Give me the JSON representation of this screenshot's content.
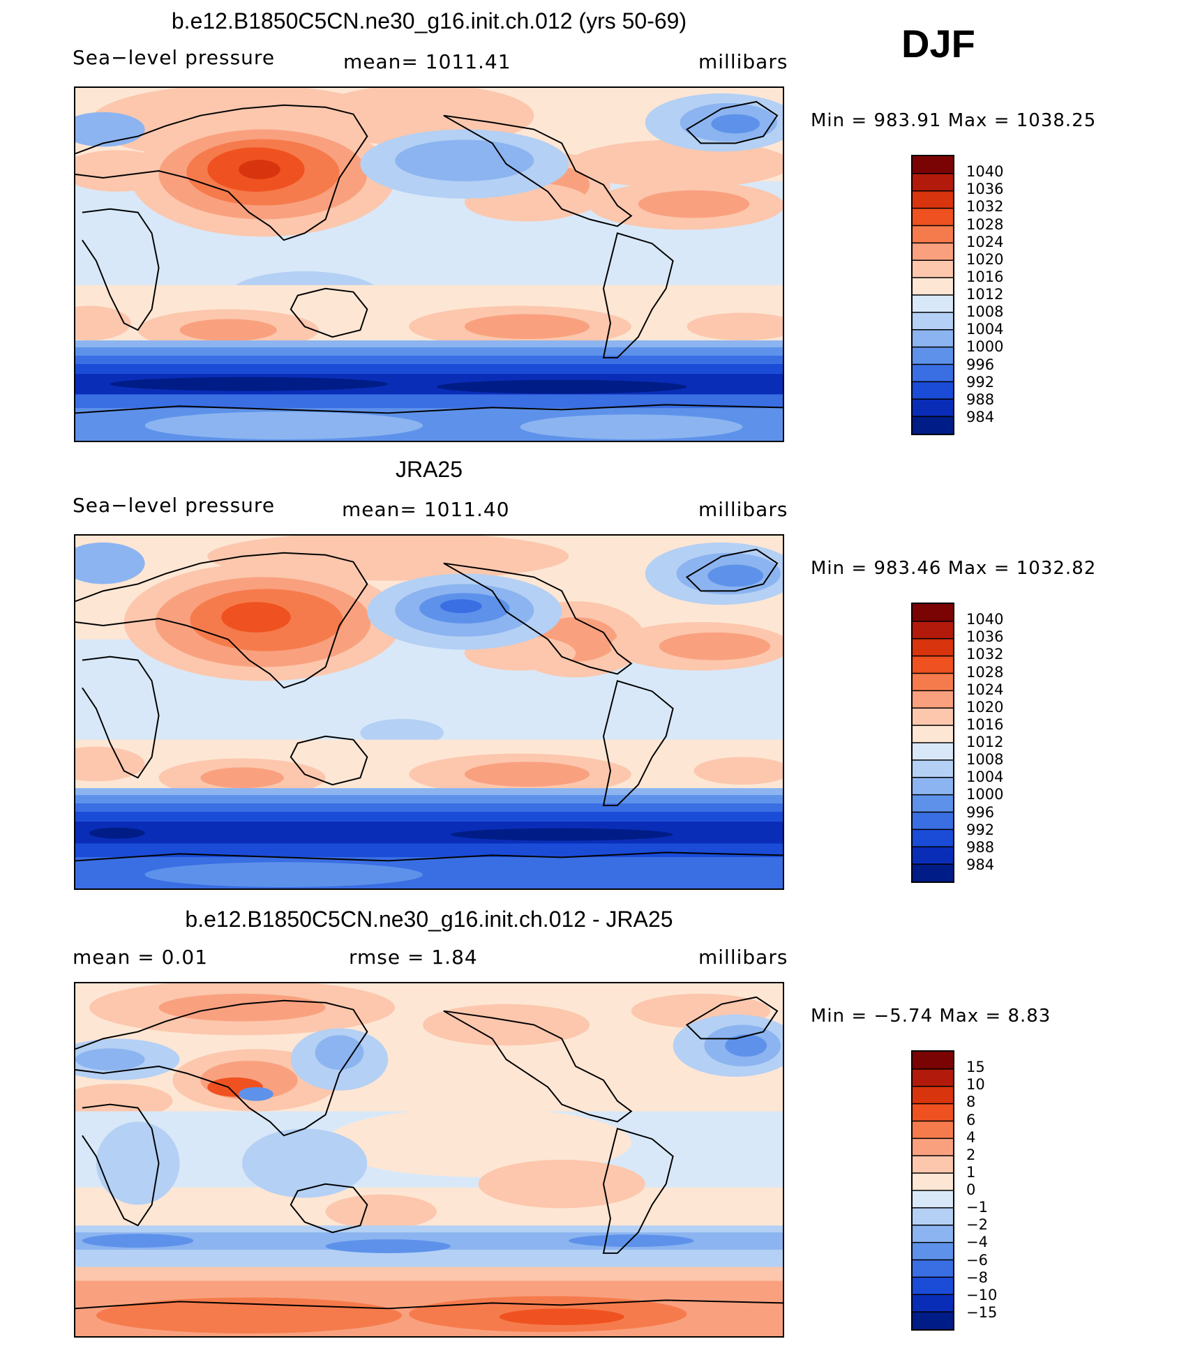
{
  "season": "DJF",
  "panels": [
    {
      "title": "b.e12.B1850C5CN.ne30_g16.init.ch.012 (yrs 50-69)",
      "left_label": "Sea−level pressure",
      "center_label": "mean=  1011.41",
      "right_label": "millibars",
      "minmax": "Min  =  983.91  Max  =  1038.25"
    },
    {
      "title": "JRA25",
      "left_label": "Sea−level pressure",
      "center_label": "mean=  1011.40",
      "right_label": "millibars",
      "minmax": "Min  =  983.46  Max  =  1032.82"
    },
    {
      "title": "b.e12.B1850C5CN.ne30_g16.init.ch.012 - JRA25",
      "left_label": "mean  =     0.01",
      "center_label": "rmse  =     1.84",
      "right_label": "millibars",
      "minmax": "Min  =    −5.74  Max  =     8.83"
    }
  ],
  "chart_data": [
    {
      "type": "heatmap",
      "title": "b.e12.B1850C5CN.ne30_g16.init.ch.012 (yrs 50-69)",
      "variable": "Sea−level pressure",
      "units": "millibars",
      "mean": 1011.41,
      "min": 983.91,
      "max": 1038.25,
      "legend_levels": [
        "1040",
        "1036",
        "1032",
        "1028",
        "1024",
        "1020",
        "1016",
        "1012",
        "1008",
        "1004",
        "1000",
        "996",
        "992",
        "988",
        "984"
      ],
      "colors": [
        "#7a0403",
        "#b21b0b",
        "#d8340e",
        "#ef5220",
        "#f67b4c",
        "#f9a17f",
        "#fcc7ad",
        "#fde6d4",
        "#d8e8f8",
        "#b4d0f4",
        "#8cb4f0",
        "#5e92ea",
        "#3a6ee3",
        "#1a4cd8",
        "#0a2db8",
        "#001c86"
      ]
    },
    {
      "type": "heatmap",
      "title": "JRA25",
      "variable": "Sea−level pressure",
      "units": "millibars",
      "mean": 1011.4,
      "min": 983.46,
      "max": 1032.82,
      "legend_levels": [
        "1040",
        "1036",
        "1032",
        "1028",
        "1024",
        "1020",
        "1016",
        "1012",
        "1008",
        "1004",
        "1000",
        "996",
        "992",
        "988",
        "984"
      ],
      "colors": [
        "#7a0403",
        "#b21b0b",
        "#d8340e",
        "#ef5220",
        "#f67b4c",
        "#f9a17f",
        "#fcc7ad",
        "#fde6d4",
        "#d8e8f8",
        "#b4d0f4",
        "#8cb4f0",
        "#5e92ea",
        "#3a6ee3",
        "#1a4cd8",
        "#0a2db8",
        "#001c86"
      ]
    },
    {
      "type": "heatmap",
      "title": "b.e12.B1850C5CN.ne30_g16.init.ch.012 - JRA25",
      "units": "millibars",
      "mean": 0.01,
      "rmse": 1.84,
      "min": -5.74,
      "max": 8.83,
      "legend_levels": [
        "15",
        "10",
        "8",
        "6",
        "4",
        "2",
        "1",
        "0",
        "−1",
        "−2",
        "−4",
        "−6",
        "−8",
        "−10",
        "−15"
      ],
      "colors": [
        "#7a0403",
        "#b21b0b",
        "#d8340e",
        "#ef5220",
        "#f67b4c",
        "#f9a17f",
        "#fcc7ad",
        "#fde6d4",
        "#d8e8f8",
        "#b4d0f4",
        "#8cb4f0",
        "#5e92ea",
        "#3a6ee3",
        "#1a4cd8",
        "#0a2db8",
        "#001c86"
      ]
    }
  ]
}
